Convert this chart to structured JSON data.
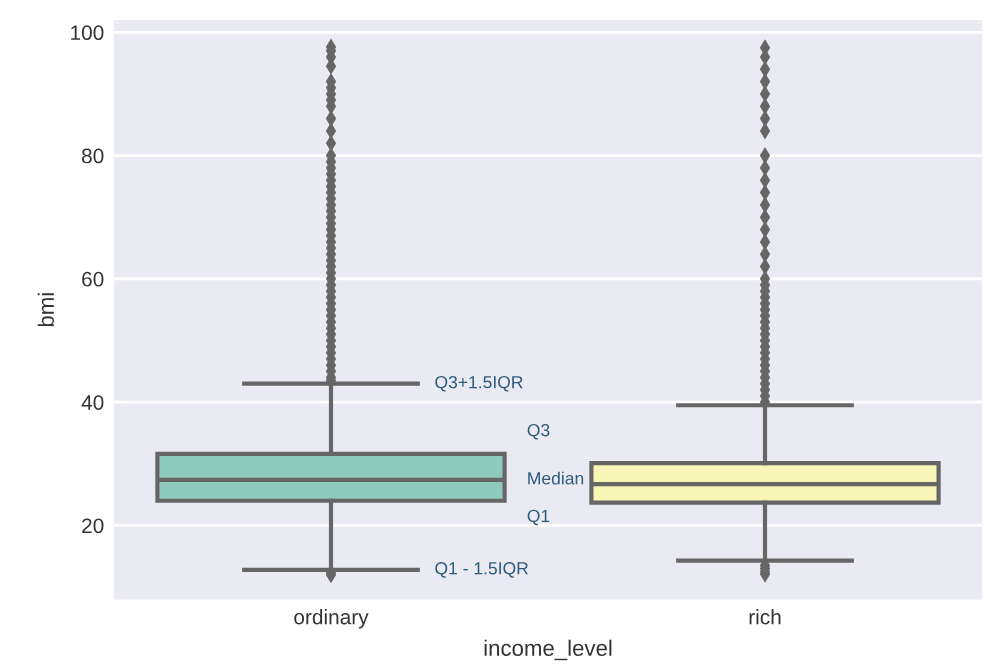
{
  "chart_data": {
    "type": "box",
    "xlabel": "income_level",
    "ylabel": "bmi",
    "categories": [
      "ordinary",
      "rich"
    ],
    "colors": [
      "#8fcbbd",
      "#f8f6b6"
    ],
    "boxes": [
      {
        "low": 12.8,
        "q1": 24.0,
        "median": 27.4,
        "q3": 31.6,
        "high": 43.0,
        "outliers": [
          12.0,
          12.3,
          43.5,
          44,
          45,
          46,
          47,
          48,
          49,
          50,
          51,
          52,
          53,
          54,
          55,
          56,
          57,
          58,
          59,
          60,
          61,
          62,
          63,
          64,
          65,
          66,
          67,
          68,
          69,
          70,
          71,
          72,
          73,
          74,
          75,
          76,
          77,
          78,
          79,
          80,
          82,
          84,
          86,
          88,
          89,
          90,
          91,
          92,
          94.5,
          96,
          97,
          97.6
        ]
      },
      {
        "low": 14.3,
        "q1": 23.7,
        "median": 26.7,
        "q3": 30.1,
        "high": 39.5,
        "outliers": [
          12.1,
          12.5,
          13.0,
          13.5,
          40,
          41,
          42,
          43,
          44,
          45,
          46,
          47,
          48,
          49,
          50,
          51,
          52,
          53,
          54,
          55,
          56,
          57,
          58,
          59,
          60,
          62,
          64,
          66,
          68,
          70,
          72,
          74,
          76,
          78,
          80,
          84,
          86,
          88,
          90,
          92,
          94,
          96,
          97.5
        ]
      }
    ],
    "ylim": [
      8,
      102
    ],
    "yticks": [
      20,
      40,
      60,
      80,
      100
    ],
    "grid": "y",
    "marker": "diamond",
    "annotations": [
      "Q3+1.5IQR",
      "Q3",
      "Median",
      "Q1",
      "Q1 - 1.5IQR"
    ]
  }
}
